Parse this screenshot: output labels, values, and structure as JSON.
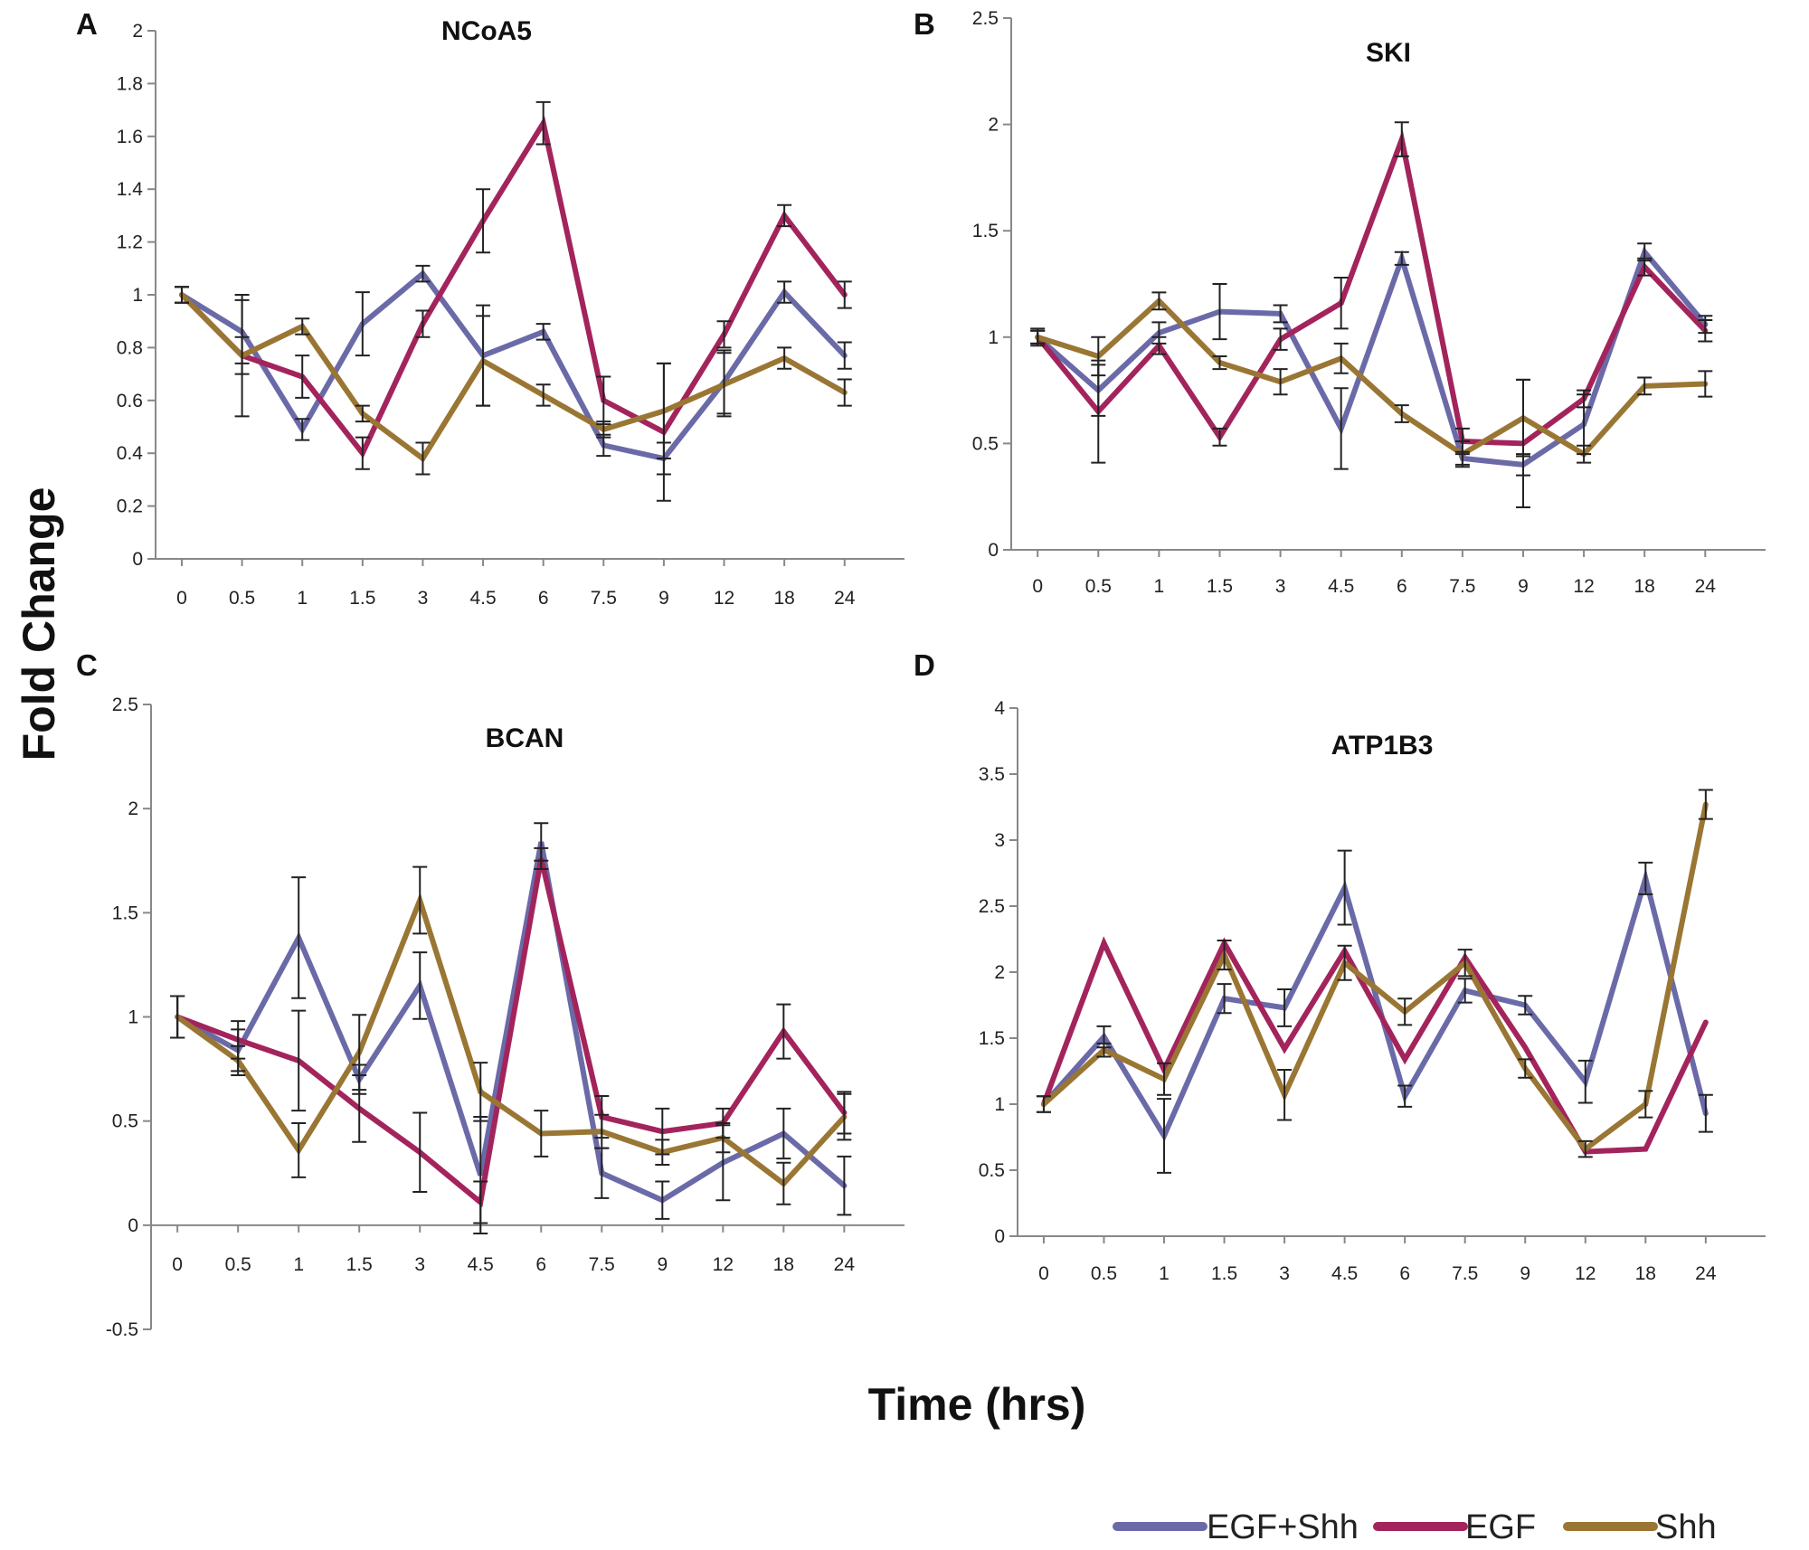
{
  "figure": {
    "ylabel": "Fold Change",
    "xlabel": "Time (hrs)"
  },
  "legend": [
    {
      "name": "EGF+Shh",
      "color": "#6b6aa8"
    },
    {
      "name": "EGF",
      "color": "#a3245c"
    },
    {
      "name": "Shh",
      "color": "#9a7634"
    }
  ],
  "chart_data": [
    {
      "letter": "A",
      "type": "line",
      "title": "NCoA5",
      "categories": [
        "0",
        "0.5",
        "1",
        "1.5",
        "3",
        "4.5",
        "6",
        "7.5",
        "9",
        "12",
        "18",
        "24"
      ],
      "yticks": [
        "0",
        "0.2",
        "0.4",
        "0.6",
        "0.8",
        "1",
        "1.2",
        "1.4",
        "1.6",
        "1.8",
        "2"
      ],
      "ylim": [
        0,
        2
      ],
      "legend_placement": "bottom-right",
      "grid": false,
      "series": [
        {
          "name": "EGF+Shh",
          "color": "#6b6aa8",
          "values": [
            1.0,
            0.86,
            0.49,
            0.89,
            1.08,
            0.77,
            0.86,
            0.43,
            0.38,
            0.67,
            1.01,
            0.77
          ],
          "errors": [
            0.03,
            0.12,
            0.04,
            0.12,
            0.03,
            0.19,
            0.03,
            0.04,
            0.06,
            0.12,
            0.04,
            0.05
          ]
        },
        {
          "name": "EGF",
          "color": "#a3245c",
          "values": [
            1.0,
            0.77,
            0.69,
            0.4,
            0.89,
            1.28,
            1.65,
            0.6,
            0.48,
            0.85,
            1.3,
            1.0
          ],
          "errors": [
            0.03,
            0.23,
            0.08,
            0.06,
            0.05,
            0.12,
            0.08,
            0.09,
            0.26,
            0.05,
            0.04,
            0.05
          ]
        },
        {
          "name": "Shh",
          "color": "#9a7634",
          "values": [
            1.0,
            0.77,
            0.88,
            0.55,
            0.38,
            0.75,
            0.62,
            0.49,
            0.56,
            0.66,
            0.76,
            0.63
          ],
          "errors": [
            0.03,
            0.07,
            0.03,
            0.03,
            0.06,
            0.17,
            0.04,
            0.03,
            0.18,
            0.12,
            0.04,
            0.05
          ]
        }
      ]
    },
    {
      "letter": "B",
      "type": "line",
      "title": "SKI",
      "categories": [
        "0",
        "0.5",
        "1",
        "1.5",
        "3",
        "4.5",
        "6",
        "7.5",
        "9",
        "12",
        "18",
        "24"
      ],
      "yticks": [
        "0",
        "0.5",
        "1",
        "1.5",
        "2",
        "2.5"
      ],
      "ylim": [
        0,
        2.5
      ],
      "legend_placement": "bottom-right",
      "grid": false,
      "series": [
        {
          "name": "EGF+Shh",
          "color": "#6b6aa8",
          "values": [
            1.0,
            0.75,
            1.02,
            1.12,
            1.11,
            0.57,
            1.37,
            0.43,
            0.4,
            0.59,
            1.4,
            1.06
          ],
          "errors": [
            0.04,
            0.12,
            0.05,
            0.13,
            0.04,
            0.19,
            0.03,
            0.03,
            0.05,
            0.14,
            0.04,
            0.04
          ]
        },
        {
          "name": "EGF",
          "color": "#a3245c",
          "values": [
            1.0,
            0.65,
            0.96,
            0.53,
            0.99,
            1.16,
            1.93,
            0.51,
            0.5,
            0.71,
            1.33,
            1.03
          ],
          "errors": [
            0.03,
            0.24,
            0.04,
            0.04,
            0.05,
            0.12,
            0.08,
            0.06,
            0.3,
            0.04,
            0.04,
            0.05
          ]
        },
        {
          "name": "Shh",
          "color": "#9a7634",
          "values": [
            1.0,
            0.91,
            1.17,
            0.88,
            0.79,
            0.9,
            0.64,
            0.45,
            0.62,
            0.45,
            0.77,
            0.78
          ],
          "errors": [
            0.03,
            0.09,
            0.04,
            0.03,
            0.06,
            0.07,
            0.04,
            0.06,
            0.18,
            0.04,
            0.04,
            0.06
          ]
        }
      ]
    },
    {
      "letter": "C",
      "type": "line",
      "title": "BCAN",
      "categories": [
        "0",
        "0.5",
        "1",
        "1.5",
        "3",
        "4.5",
        "6",
        "7.5",
        "9",
        "12",
        "18",
        "24"
      ],
      "yticks": [
        "-0.5",
        "0",
        "0.5",
        "1",
        "1.5",
        "2",
        "2.5"
      ],
      "ylim": [
        -0.5,
        2.5
      ],
      "legend_placement": "bottom-right",
      "grid": false,
      "series": [
        {
          "name": "EGF+Shh",
          "color": "#6b6aa8",
          "values": [
            1.0,
            0.84,
            1.38,
            0.7,
            1.15,
            0.24,
            1.84,
            0.25,
            0.12,
            0.3,
            0.44,
            0.19
          ],
          "errors": [
            0.1,
            0.1,
            0.29,
            0.07,
            0.16,
            0.28,
            0.09,
            0.12,
            0.09,
            0.18,
            0.12,
            0.14
          ]
        },
        {
          "name": "EGF",
          "color": "#a3245c",
          "values": [
            1.0,
            0.89,
            0.79,
            0.56,
            0.35,
            0.11,
            1.76,
            0.52,
            0.45,
            0.49,
            0.93,
            0.54
          ],
          "errors": [
            0.1,
            0.09,
            0.24,
            0.16,
            0.19,
            0.1,
            0.05,
            0.1,
            0.11,
            0.07,
            0.13,
            0.1
          ]
        },
        {
          "name": "Shh",
          "color": "#9a7634",
          "values": [
            1.0,
            0.79,
            0.36,
            0.83,
            1.56,
            0.64,
            0.44,
            0.45,
            0.35,
            0.42,
            0.2,
            0.52
          ],
          "errors": [
            0.1,
            0.07,
            0.13,
            0.18,
            0.16,
            0.14,
            0.11,
            0.08,
            0.06,
            0.07,
            0.1,
            0.11
          ]
        }
      ]
    },
    {
      "letter": "D",
      "type": "line",
      "title": "ATP1B3",
      "categories": [
        "0",
        "0.5",
        "1",
        "1.5",
        "3",
        "4.5",
        "6",
        "7.5",
        "9",
        "12",
        "18",
        "24"
      ],
      "yticks": [
        "0",
        "0.5",
        "1",
        "1.5",
        "2",
        "2.5",
        "3",
        "3.5",
        "4"
      ],
      "ylim": [
        0,
        4
      ],
      "legend_placement": "bottom-right",
      "grid": false,
      "series": [
        {
          "name": "EGF+Shh",
          "color": "#6b6aa8",
          "values": [
            1.0,
            1.51,
            0.76,
            1.8,
            1.73,
            2.64,
            1.06,
            1.86,
            1.75,
            1.17,
            2.71,
            0.93
          ],
          "errors": [
            0.06,
            0.08,
            0.28,
            0.11,
            0.14,
            0.28,
            0.08,
            0.09,
            0.07,
            0.16,
            0.12,
            0.14
          ]
        },
        {
          "name": "EGF",
          "color": "#a3245c",
          "values": [
            1.0,
            2.22,
            1.26,
            2.22,
            1.42,
            2.16,
            1.34,
            2.11,
            1.43,
            0.64,
            0.66,
            1.62
          ]
        },
        {
          "name": "Shh",
          "color": "#9a7634",
          "values": [
            1.0,
            1.41,
            1.19,
            2.13,
            1.07,
            2.07,
            1.7,
            2.07,
            1.27,
            0.66,
            1.0,
            3.27
          ],
          "errors": [
            0.06,
            0.05,
            0.12,
            0.11,
            0.19,
            0.13,
            0.1,
            0.1,
            0.07,
            0.06,
            0.1,
            0.11
          ]
        }
      ]
    }
  ]
}
